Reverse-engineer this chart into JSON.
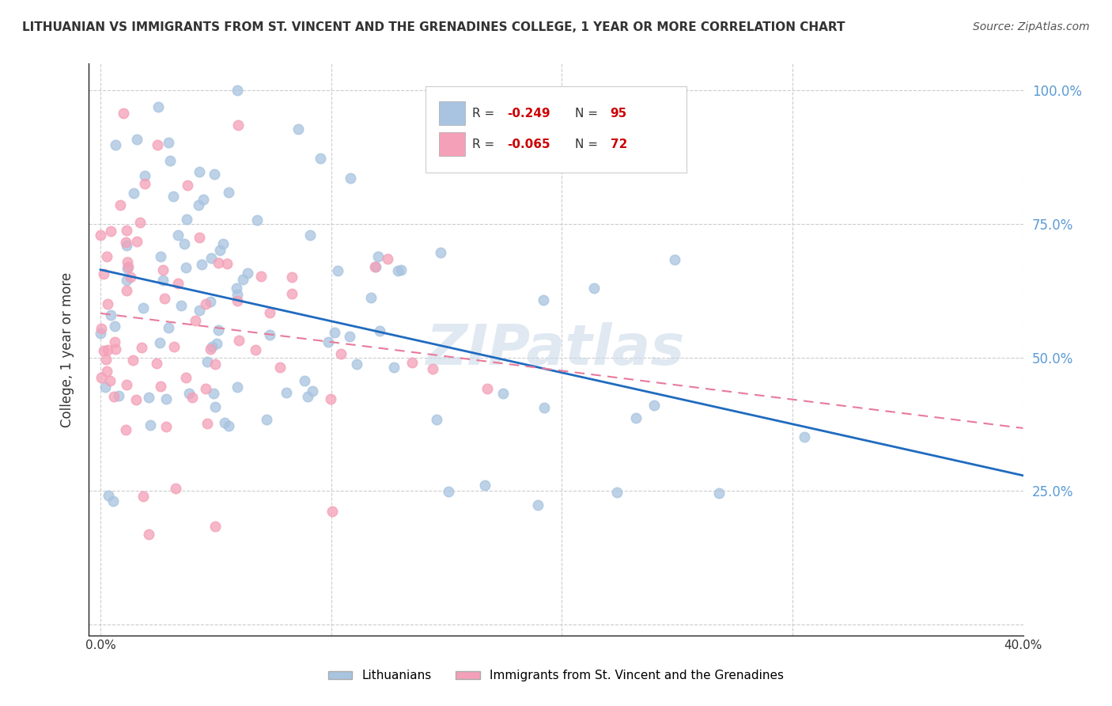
{
  "title": "LITHUANIAN VS IMMIGRANTS FROM ST. VINCENT AND THE GRENADINES COLLEGE, 1 YEAR OR MORE CORRELATION CHART",
  "source": "Source: ZipAtlas.com",
  "ylabel": "College, 1 year or more",
  "blue_color": "#a8c4e0",
  "pink_color": "#f4a0b8",
  "blue_line_color": "#1f6bbf",
  "pink_line_color": "#e87a9a",
  "right_axis_color": "#5b9bd5",
  "watermark": "ZIPatlas",
  "legend_R1": "-0.249",
  "legend_N1": "95",
  "legend_R2": "-0.065",
  "legend_N2": "72",
  "bottom_legend_1": "Lithuanians",
  "bottom_legend_2": "Immigrants from St. Vincent and the Grenadines"
}
